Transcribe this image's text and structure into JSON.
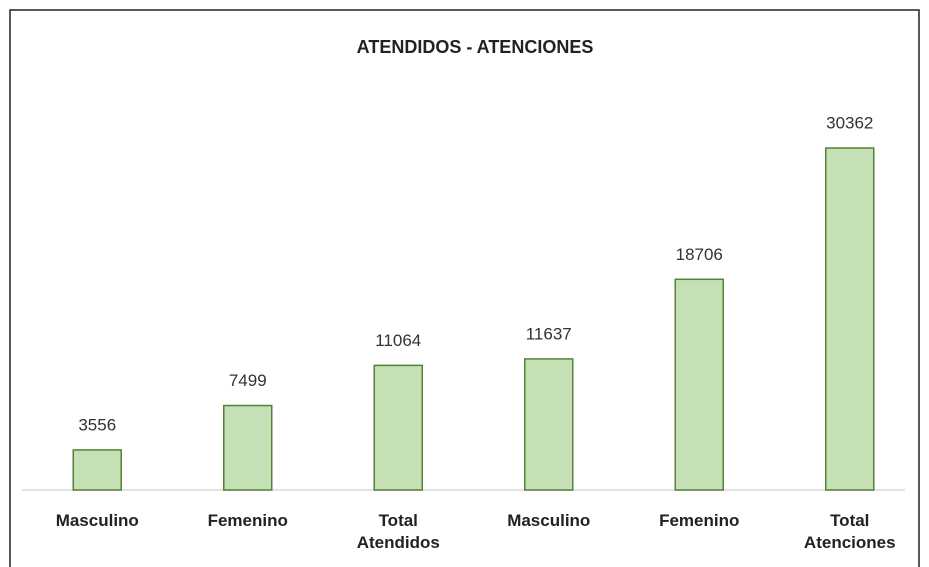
{
  "chart_data": {
    "type": "bar",
    "title": "ATENDIDOS - ATENCIONES",
    "categories": [
      "Masculino",
      "Femenino",
      "Total Atendidos",
      "Masculino",
      "Femenino",
      "Total Atenciones"
    ],
    "values": [
      3556,
      7499,
      11064,
      11637,
      18706,
      30362
    ],
    "color": "#c5e0b4"
  }
}
